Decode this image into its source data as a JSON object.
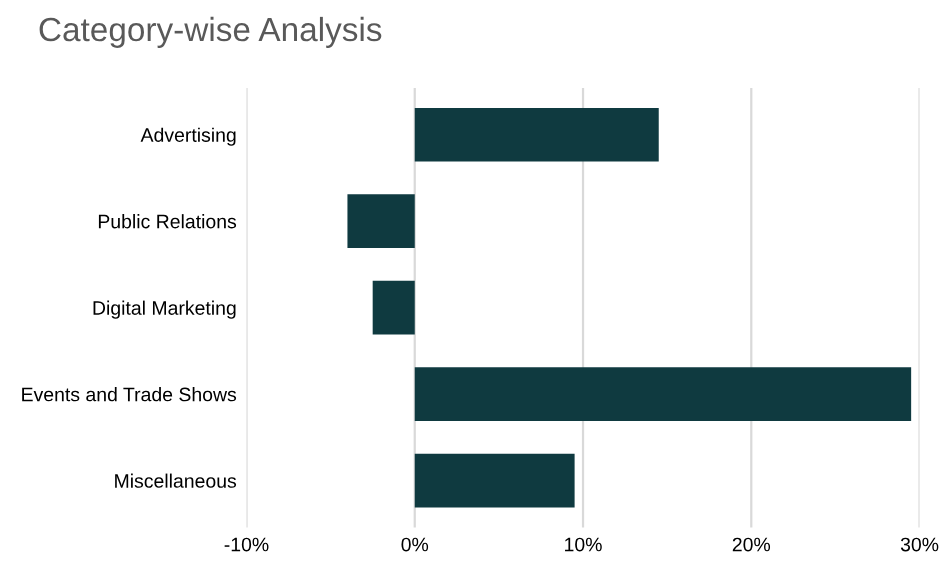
{
  "chart_data": {
    "type": "bar",
    "orientation": "horizontal",
    "title": "Category-wise Analysis",
    "categories": [
      "Advertising",
      "Public Relations",
      "Digital Marketing",
      "Events and Trade Shows",
      "Miscellaneous"
    ],
    "values": [
      14.5,
      -4,
      -2.5,
      29.5,
      9.5
    ],
    "color": "#0f3a40",
    "xlim": [
      -10,
      30
    ],
    "xticks": [
      {
        "value": -10,
        "label": "-10%"
      },
      {
        "value": 0,
        "label": "0%"
      },
      {
        "value": 10,
        "label": "10%"
      },
      {
        "value": 20,
        "label": "20%"
      },
      {
        "value": 30,
        "label": "30%"
      }
    ],
    "grid": "x"
  }
}
